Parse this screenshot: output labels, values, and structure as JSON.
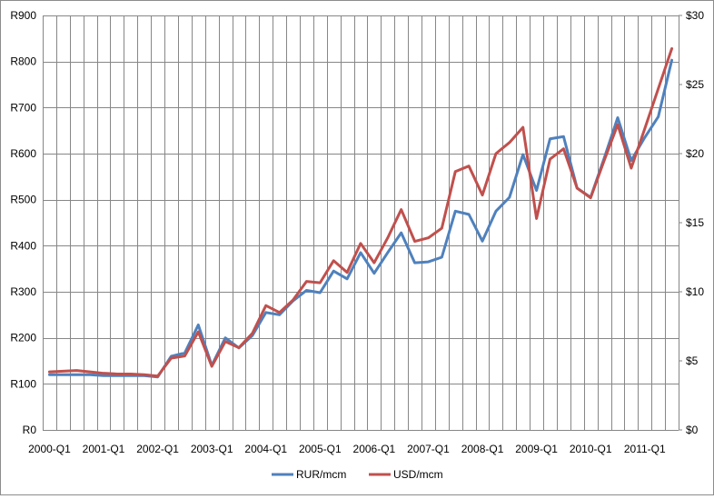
{
  "chart_data": {
    "type": "line",
    "title": "",
    "xlabel": "",
    "ylabel_left": "",
    "ylabel_right": "",
    "x": [
      "2000-Q1",
      "2000-Q2",
      "2000-Q3",
      "2000-Q4",
      "2001-Q1",
      "2001-Q2",
      "2001-Q3",
      "2001-Q4",
      "2002-Q1",
      "2002-Q2",
      "2002-Q3",
      "2002-Q4",
      "2003-Q1",
      "2003-Q2",
      "2003-Q3",
      "2003-Q4",
      "2004-Q1",
      "2004-Q2",
      "2004-Q3",
      "2004-Q4",
      "2005-Q1",
      "2005-Q2",
      "2005-Q3",
      "2005-Q4",
      "2006-Q1",
      "2006-Q2",
      "2006-Q3",
      "2006-Q4",
      "2007-Q1",
      "2007-Q2",
      "2007-Q3",
      "2007-Q4",
      "2008-Q1",
      "2008-Q2",
      "2008-Q3",
      "2008-Q4",
      "2009-Q1",
      "2009-Q2",
      "2009-Q3",
      "2009-Q4",
      "2010-Q1",
      "2010-Q2",
      "2010-Q3",
      "2010-Q4",
      "2011-Q1",
      "2011-Q2",
      "2011-Q3"
    ],
    "x_tick_labels": [
      "2000-Q1",
      "2001-Q1",
      "2002-Q1",
      "2003-Q1",
      "2004-Q1",
      "2005-Q1",
      "2006-Q1",
      "2007-Q1",
      "2008-Q1",
      "2009-Q1",
      "2010-Q1",
      "2011-Q1"
    ],
    "y_left_ticks": [
      "R0",
      "R100",
      "R200",
      "R300",
      "R400",
      "R500",
      "R600",
      "R700",
      "R800",
      "R900"
    ],
    "y_right_ticks": [
      "$0",
      "$5",
      "$10",
      "$15",
      "$20",
      "$25",
      "$30"
    ],
    "ylim_left": [
      0,
      900
    ],
    "ylim_right": [
      0,
      30
    ],
    "grid": true,
    "legend_position": "bottom",
    "series": [
      {
        "name": "RUR/mcm",
        "axis": "left",
        "color": "#4f81bd",
        "values": [
          120,
          120,
          120,
          120,
          118,
          118,
          118,
          118,
          115,
          160,
          167,
          228,
          140,
          200,
          178,
          205,
          255,
          250,
          280,
          303,
          298,
          345,
          328,
          385,
          340,
          385,
          428,
          363,
          365,
          375,
          475,
          468,
          410,
          475,
          505,
          598,
          520,
          632,
          637,
          525,
          505,
          590,
          678,
          585,
          635,
          680,
          803
        ]
      },
      {
        "name": "USD/mcm",
        "axis": "right",
        "color": "#c0504d",
        "values": [
          4.2,
          4.25,
          4.3,
          4.2,
          4.1,
          4.05,
          4.05,
          4.0,
          3.9,
          5.2,
          5.35,
          7.1,
          4.6,
          6.4,
          5.95,
          7.0,
          9.0,
          8.5,
          9.4,
          10.75,
          10.65,
          12.25,
          11.4,
          13.5,
          12.1,
          13.9,
          15.95,
          13.65,
          13.9,
          14.6,
          18.7,
          19.1,
          17.0,
          20.0,
          20.8,
          21.9,
          15.3,
          19.6,
          20.35,
          17.5,
          16.8,
          19.5,
          22.1,
          18.95,
          21.8,
          24.7,
          27.6
        ]
      }
    ]
  }
}
